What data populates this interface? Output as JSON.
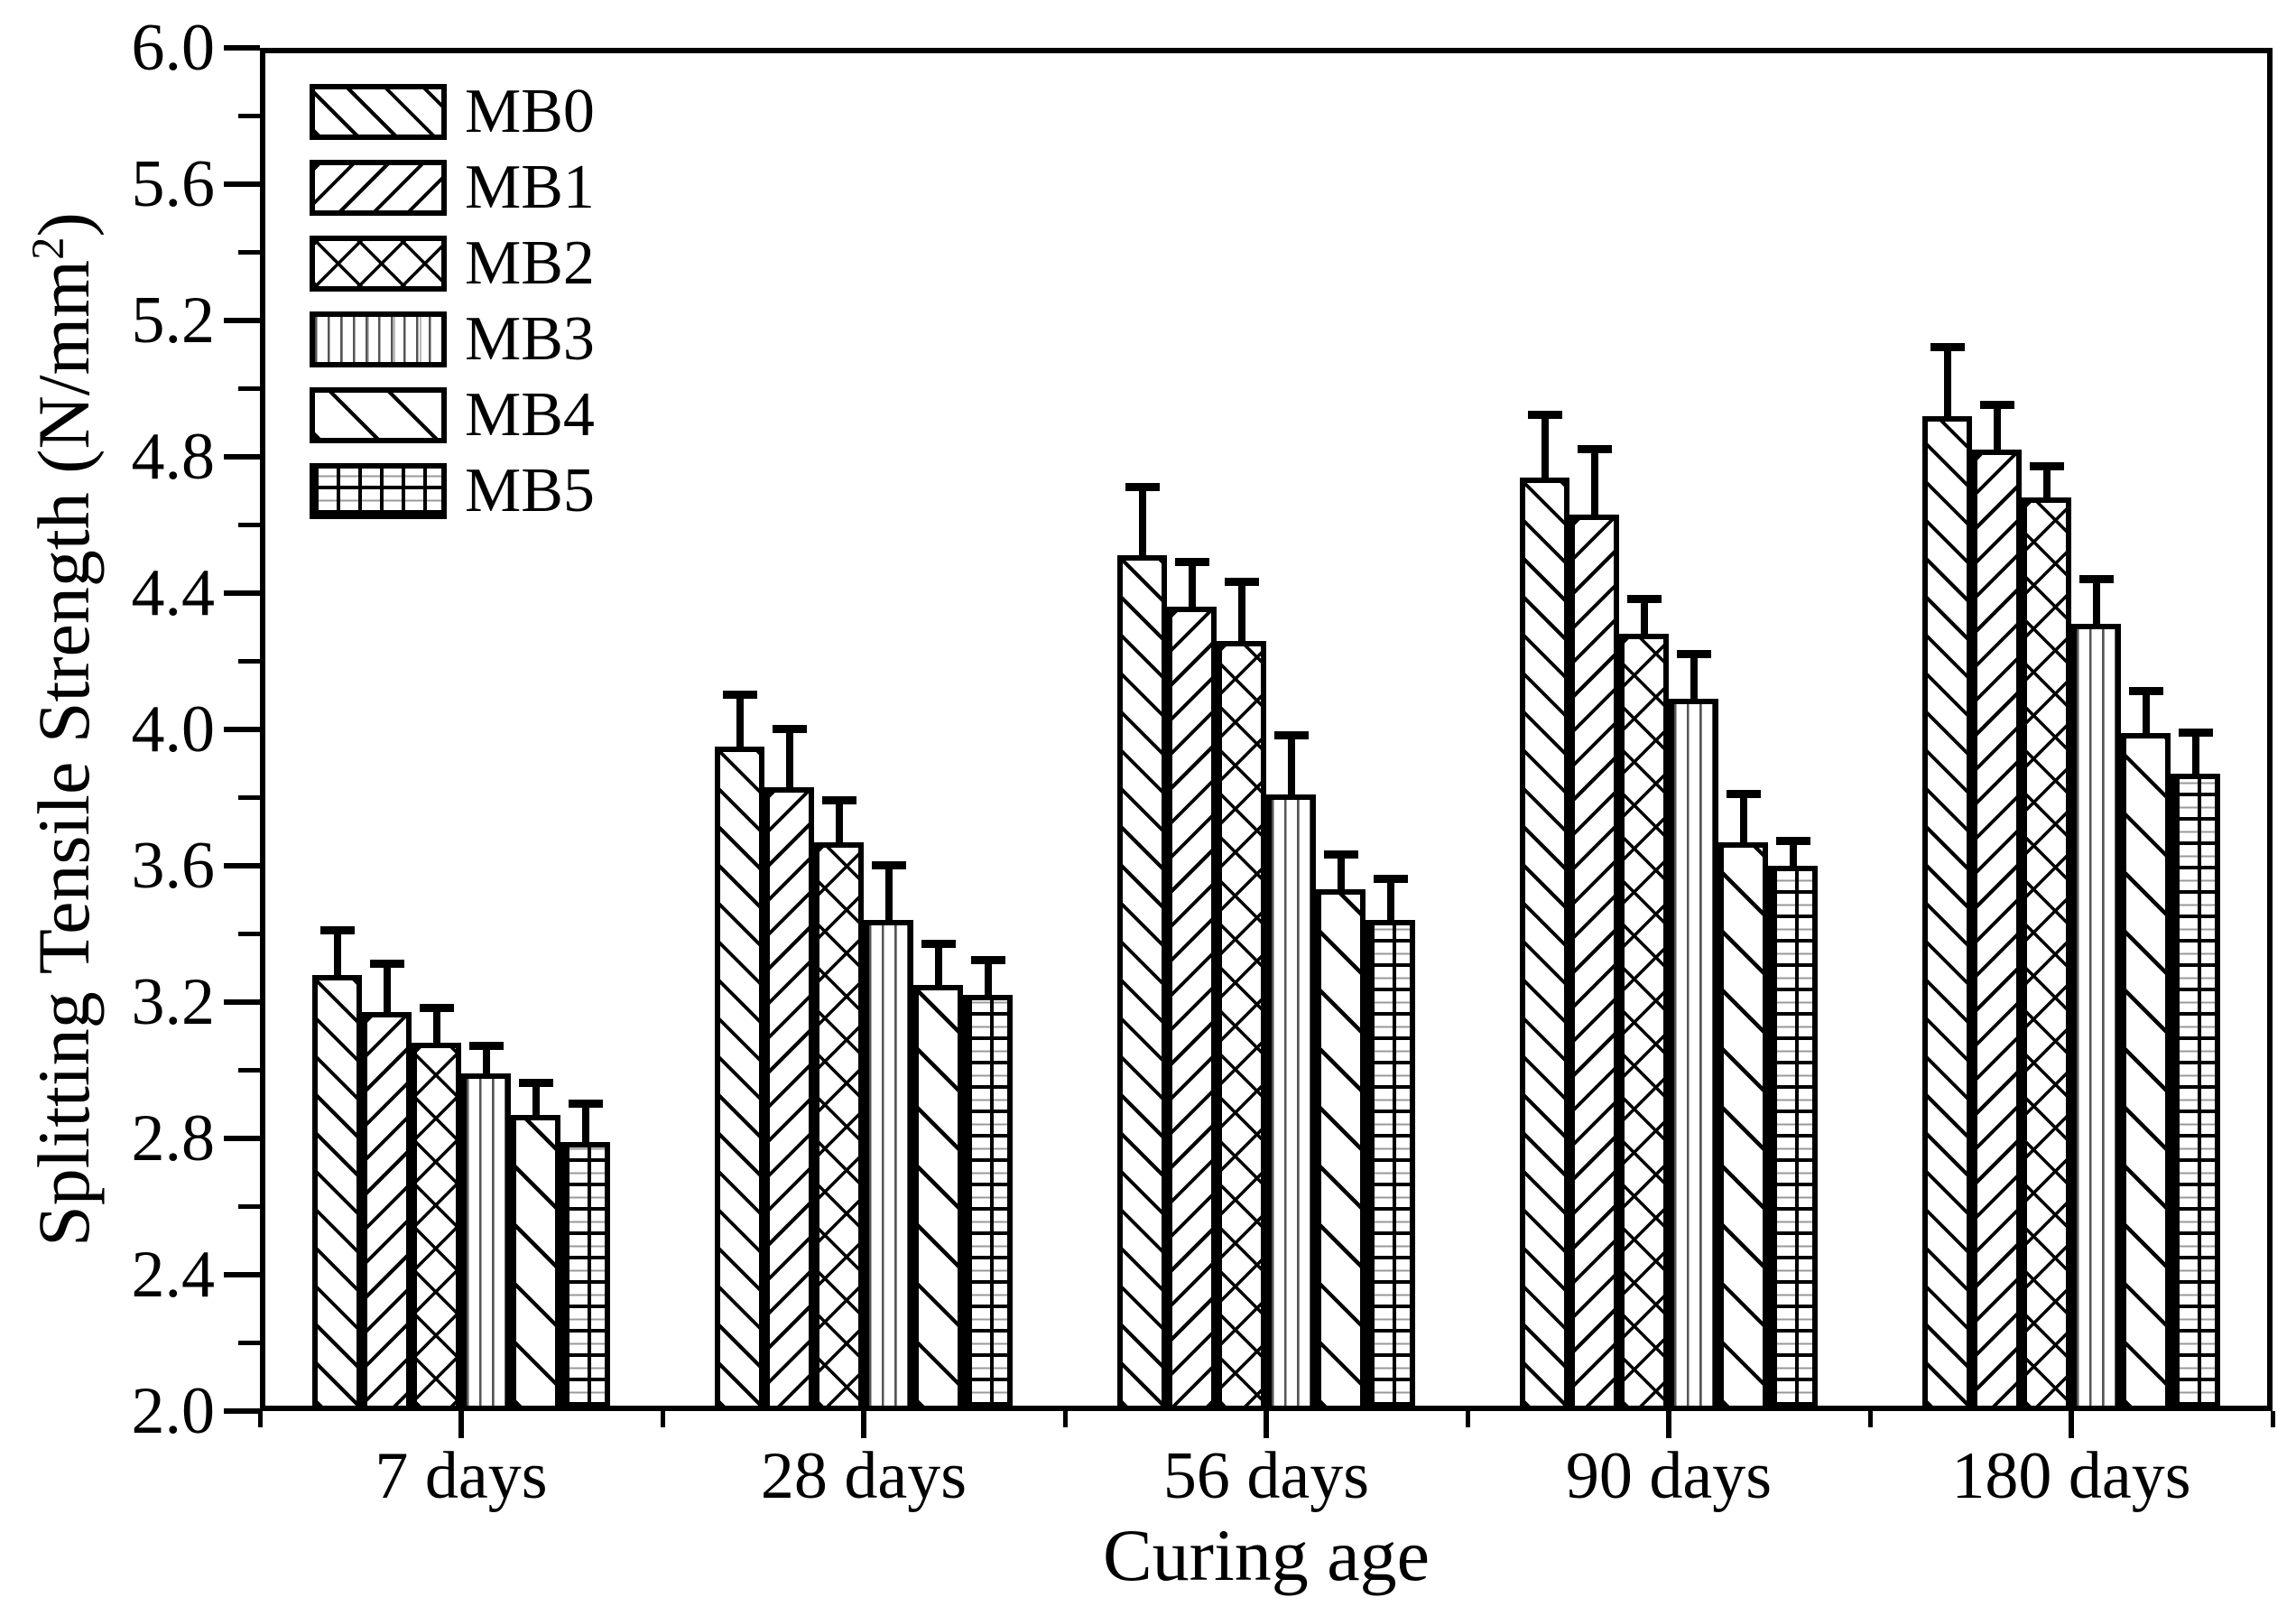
{
  "figure": {
    "background": "#ffffff",
    "line_color": "#000000"
  },
  "chart_data": {
    "type": "bar",
    "title": "",
    "xlabel": "Curing age",
    "ylabel_main": "Splitting Tensile Strength (N/mm",
    "ylabel_sup": "2",
    "ylabel_end": ")",
    "categories": [
      "7 days",
      "28 days",
      "56 days",
      "90 days",
      "180 days"
    ],
    "series": [
      {
        "name": "MB0",
        "pattern": "diagonal-forward",
        "values": [
          3.28,
          3.95,
          4.51,
          4.74,
          4.92
        ],
        "errors": [
          0.12,
          0.14,
          0.19,
          0.17,
          0.19
        ]
      },
      {
        "name": "MB1",
        "pattern": "diagonal-backward",
        "values": [
          3.17,
          3.83,
          4.36,
          4.63,
          4.82
        ],
        "errors": [
          0.13,
          0.16,
          0.12,
          0.18,
          0.12
        ]
      },
      {
        "name": "MB2",
        "pattern": "crosshatch",
        "values": [
          3.08,
          3.67,
          4.26,
          4.28,
          4.68
        ],
        "errors": [
          0.09,
          0.11,
          0.16,
          0.09,
          0.08
        ]
      },
      {
        "name": "MB3",
        "pattern": "vertical-lines",
        "values": [
          2.99,
          3.44,
          3.81,
          4.09,
          4.31
        ],
        "errors": [
          0.07,
          0.15,
          0.16,
          0.12,
          0.12
        ]
      },
      {
        "name": "MB4",
        "pattern": "diagonal-sparse",
        "values": [
          2.87,
          3.25,
          3.53,
          3.67,
          3.99
        ],
        "errors": [
          0.08,
          0.11,
          0.09,
          0.13,
          0.11
        ]
      },
      {
        "name": "MB5",
        "pattern": "grid",
        "values": [
          2.79,
          3.22,
          3.44,
          3.6,
          3.87
        ],
        "errors": [
          0.1,
          0.09,
          0.11,
          0.06,
          0.11
        ]
      }
    ],
    "ylim": [
      2.0,
      6.0
    ],
    "ytick_step": 0.4,
    "ytick_minor_step": 0.2,
    "ytick_labels": [
      "2.0",
      "2.4",
      "2.8",
      "3.2",
      "3.6",
      "4.0",
      "4.4",
      "4.8",
      "5.2",
      "5.6",
      "6.0"
    ],
    "grid": false,
    "error_bars": true,
    "legend_position": "top-left",
    "bar_fill": "#ffffff",
    "bar_edge": "#000000"
  }
}
